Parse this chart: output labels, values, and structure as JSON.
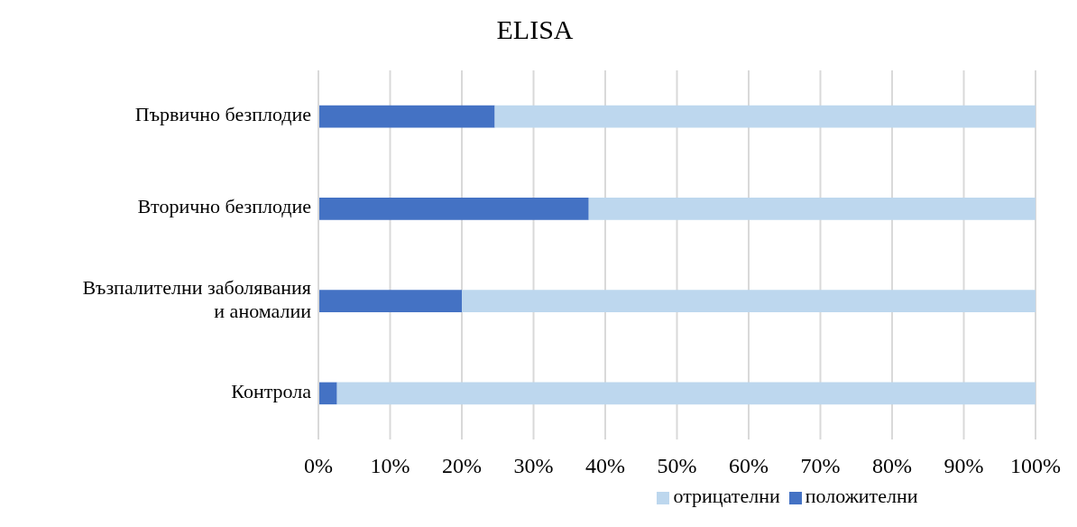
{
  "chart_data": {
    "type": "bar",
    "title": "ELISA",
    "orientation": "horizontal",
    "stacked": true,
    "categories": [
      "Първично безплодие",
      "Вторично безплодие",
      "Възпалителни заболявания и аномалии",
      "Контрола"
    ],
    "series": [
      {
        "name": "положителни",
        "color": "#4472c4",
        "values": [
          24.6,
          37.7,
          20,
          2.6
        ]
      },
      {
        "name": "отрицателни",
        "color": "#bdd7ee",
        "values": [
          75.4,
          62.3,
          80,
          97.4
        ]
      }
    ],
    "xlim": [
      0,
      100
    ],
    "xticks": [
      {
        "value": 0,
        "label": "0%"
      },
      {
        "value": 10,
        "label": "10%"
      },
      {
        "value": 20,
        "label": "20%"
      },
      {
        "value": 30,
        "label": "30%"
      },
      {
        "value": 40,
        "label": "40%"
      },
      {
        "value": 50,
        "label": "50%"
      },
      {
        "value": 60,
        "label": "60%"
      },
      {
        "value": 70,
        "label": "70%"
      },
      {
        "value": 80,
        "label": "80%"
      },
      {
        "value": 90,
        "label": "90%"
      },
      {
        "value": 100,
        "label": "100%"
      }
    ],
    "grid": "x",
    "legend": "bottom"
  }
}
